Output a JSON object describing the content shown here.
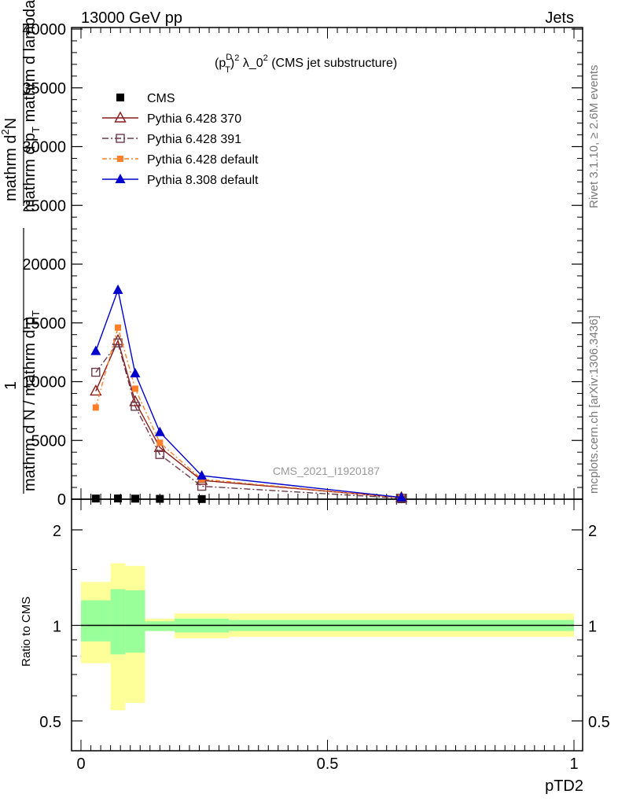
{
  "header": {
    "left": "13000 GeV pp",
    "right": "Jets"
  },
  "side_labels": {
    "rivet": "Rivet 3.1.10, ≥ 2.6M events",
    "mcplots": "mcplots.cern.ch [arXiv:1306.3436]"
  },
  "watermark": "CMS_2021_I1920187",
  "plot_title": {
    "base": "(p",
    "sup1": "D",
    "sub1": "T",
    "close": ")",
    "sup2": "2",
    "mid": " λ_0",
    "sup3": "2",
    "end": " (CMS jet substructure)"
  },
  "main_ylabel": {
    "line1": "mathrm d",
    "line1_sup": "2",
    "line1_end": "N",
    "line2": "mathrm d p",
    "line2_sub": "T",
    "line2_end": " mathrm d lambda",
    "frac_one": "1",
    "line3": "mathrm d N / mathrm d p",
    "line3_sub": "T"
  },
  "colors": {
    "cms": "#000000",
    "p370": "#8b1a1a",
    "p391": "#6b3a4a",
    "pdefault": "#ff7f2a",
    "p8": "#0000cc",
    "band_outer": "#ffff99",
    "band_inner": "#99ff99"
  },
  "chart_data": [
    {
      "type": "line",
      "title": "(pTD)^2 λ_0^2 (CMS jet substructure)",
      "xlim": [
        0,
        1
      ],
      "ylim": [
        0,
        40000
      ],
      "yticks": [
        "0",
        "5000",
        "10000",
        "15000",
        "20000",
        "25000",
        "30000",
        "35000",
        "40000"
      ],
      "ytick_values": [
        0,
        5000,
        10000,
        15000,
        20000,
        25000,
        30000,
        35000,
        40000
      ],
      "x": [
        0.03,
        0.075,
        0.11,
        0.16,
        0.245,
        0.65
      ],
      "series": [
        {
          "name": "CMS",
          "marker": "square-filled",
          "values": [
            55,
            60,
            45,
            30,
            12,
            2
          ]
        },
        {
          "name": "Pythia 6.428 370",
          "marker": "triangle-open",
          "values": [
            9200,
            13500,
            8300,
            4400,
            1600,
            130
          ]
        },
        {
          "name": "Pythia 6.428 391",
          "marker": "square-open",
          "values": [
            10800,
            13300,
            7900,
            3800,
            1100,
            80
          ]
        },
        {
          "name": "Pythia 6.428 default",
          "marker": "square-filled-small",
          "values": [
            7800,
            14600,
            9400,
            4800,
            1700,
            120
          ]
        },
        {
          "name": "Pythia 8.308 default",
          "marker": "triangle-filled",
          "values": [
            12600,
            17800,
            10700,
            5700,
            2000,
            150
          ]
        }
      ]
    },
    {
      "type": "area",
      "ylabel": "Ratio to CMS",
      "xlabel": "pTD2",
      "xlim": [
        0,
        1
      ],
      "ylim": [
        0.35,
        2.25
      ],
      "xticks": [
        "0",
        "0.5",
        "1"
      ],
      "xtick_values": [
        0,
        0.5,
        1
      ],
      "yticks": [
        "0.5",
        "1",
        "2"
      ],
      "ytick_values": [
        0.5,
        1,
        2
      ],
      "bins": [
        [
          0,
          0.06
        ],
        [
          0.06,
          0.09
        ],
        [
          0.09,
          0.13
        ],
        [
          0.13,
          0.19
        ],
        [
          0.19,
          0.3
        ],
        [
          0.3,
          1.0
        ]
      ],
      "outer_band": [
        [
          0.76,
          1.37
        ],
        [
          0.54,
          1.57
        ],
        [
          0.57,
          1.54
        ],
        [
          0.96,
          1.05
        ],
        [
          0.91,
          1.09
        ],
        [
          0.92,
          1.09
        ]
      ],
      "inner_band": [
        [
          0.89,
          1.2
        ],
        [
          0.81,
          1.3
        ],
        [
          0.82,
          1.29
        ],
        [
          0.96,
          1.03
        ],
        [
          0.95,
          1.05
        ],
        [
          0.96,
          1.04
        ]
      ]
    }
  ]
}
